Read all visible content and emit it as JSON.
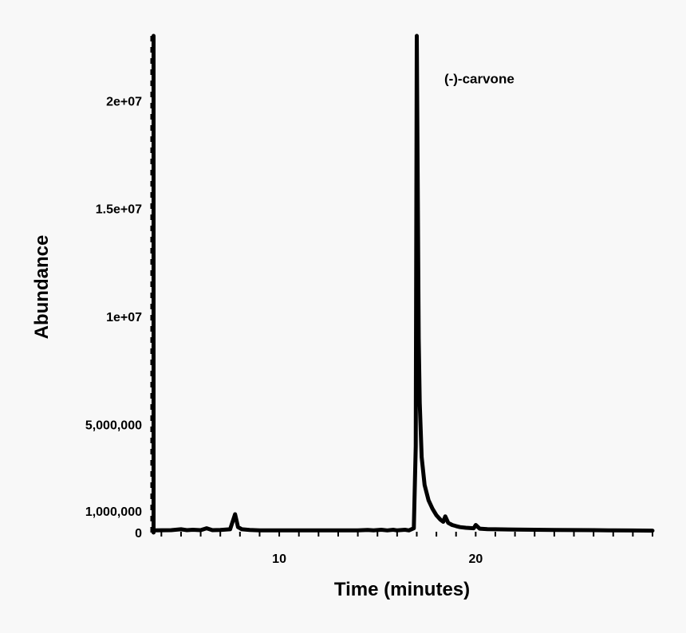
{
  "chart_data": {
    "type": "line",
    "title": "",
    "xlabel": "Time (minutes)",
    "ylabel": "Abundance",
    "xlim": [
      3.5,
      29
    ],
    "ylim": [
      0,
      23000000
    ],
    "x_ticks": [
      10,
      20
    ],
    "x_tick_labels": [
      "10",
      "20"
    ],
    "y_ticks": [
      0,
      1000000,
      5000000,
      10000000,
      15000000,
      20000000
    ],
    "y_tick_labels": [
      "0",
      "1,000,000",
      "5,000,000",
      "1e+07",
      "1.5e+07",
      "2e+07"
    ],
    "grid": false,
    "line_color": "#000000",
    "annotations": [
      {
        "text": "(-)-carvone",
        "x": 18.4,
        "y": 20800000
      }
    ],
    "series": [
      {
        "x": [
          3.6,
          4.5,
          5.0,
          5.3,
          5.6,
          6.0,
          6.3,
          6.6,
          7.0,
          7.5,
          7.75,
          7.9,
          8.1,
          8.5,
          9.0,
          10.0,
          11.0,
          12.0,
          13.0,
          14.0,
          14.5,
          14.8,
          15.2,
          15.5,
          15.8,
          16.0,
          16.4,
          16.6,
          16.85,
          16.95,
          17.0,
          17.05,
          17.1,
          17.15,
          17.25,
          17.4,
          17.6,
          17.8,
          18.0,
          18.2,
          18.35,
          18.45,
          18.6,
          18.8,
          19.0,
          19.2,
          19.5,
          19.9,
          20.0,
          20.2,
          20.6,
          21.0,
          22.0,
          23.0,
          24.0,
          25.0,
          26.0,
          27.0,
          28.0,
          29.0
        ],
        "y": [
          100000,
          110000,
          150000,
          110000,
          130000,
          110000,
          200000,
          110000,
          120000,
          150000,
          850000,
          250000,
          150000,
          120000,
          100000,
          100000,
          100000,
          100000,
          100000,
          100000,
          120000,
          100000,
          130000,
          100000,
          130000,
          100000,
          130000,
          100000,
          200000,
          4000000,
          23000000,
          16000000,
          9000000,
          6000000,
          3500000,
          2200000,
          1500000,
          1100000,
          800000,
          600000,
          500000,
          750000,
          450000,
          350000,
          300000,
          250000,
          220000,
          200000,
          350000,
          180000,
          160000,
          150000,
          140000,
          130000,
          120000,
          115000,
          110000,
          100000,
          95000,
          90000
        ]
      },
      {
        "x": [
          3.6,
          3.6
        ],
        "y": [
          0,
          23000000
        ]
      }
    ]
  }
}
